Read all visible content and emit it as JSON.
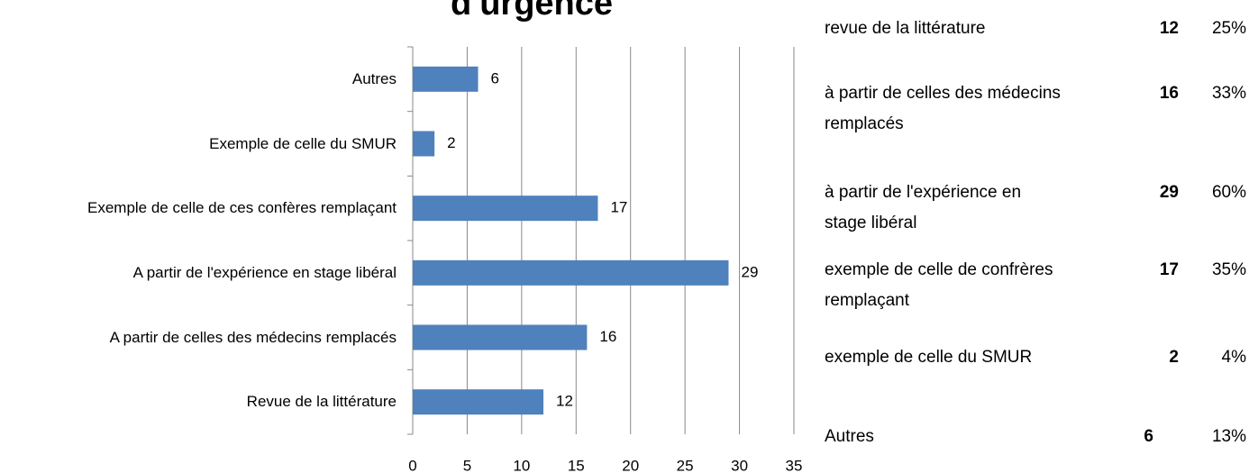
{
  "chart_data": {
    "type": "bar",
    "orientation": "horizontal",
    "title": "d'urgence",
    "categories": [
      "Autres",
      "Exemple de celle du SMUR",
      "Exemple de celle de ces confères remplaçant",
      "A partir de l'expérience en stage libéral",
      "A partir de celles des médecins remplacés",
      "Revue de la littérature"
    ],
    "values": [
      6,
      2,
      17,
      29,
      16,
      12
    ],
    "color": "#4f81bd",
    "xlim": [
      0,
      35
    ],
    "xticks": [
      0,
      5,
      10,
      15,
      20,
      25,
      30,
      35
    ],
    "grid": true
  },
  "table": {
    "rows": [
      [
        "revue de la littérature",
        "12",
        "25%"
      ],
      [
        "à partir de celles des médecins remplacés",
        "16",
        "33%"
      ],
      [
        "à partir de l'expérience en stage libéral",
        "29",
        "60%"
      ],
      [
        "exemple de celle de confrères remplaçant",
        "17",
        "35%"
      ],
      [
        "exemple de celle du SMUR",
        "2",
        "4%"
      ],
      [
        "Autres",
        "6",
        "13%"
      ]
    ]
  }
}
